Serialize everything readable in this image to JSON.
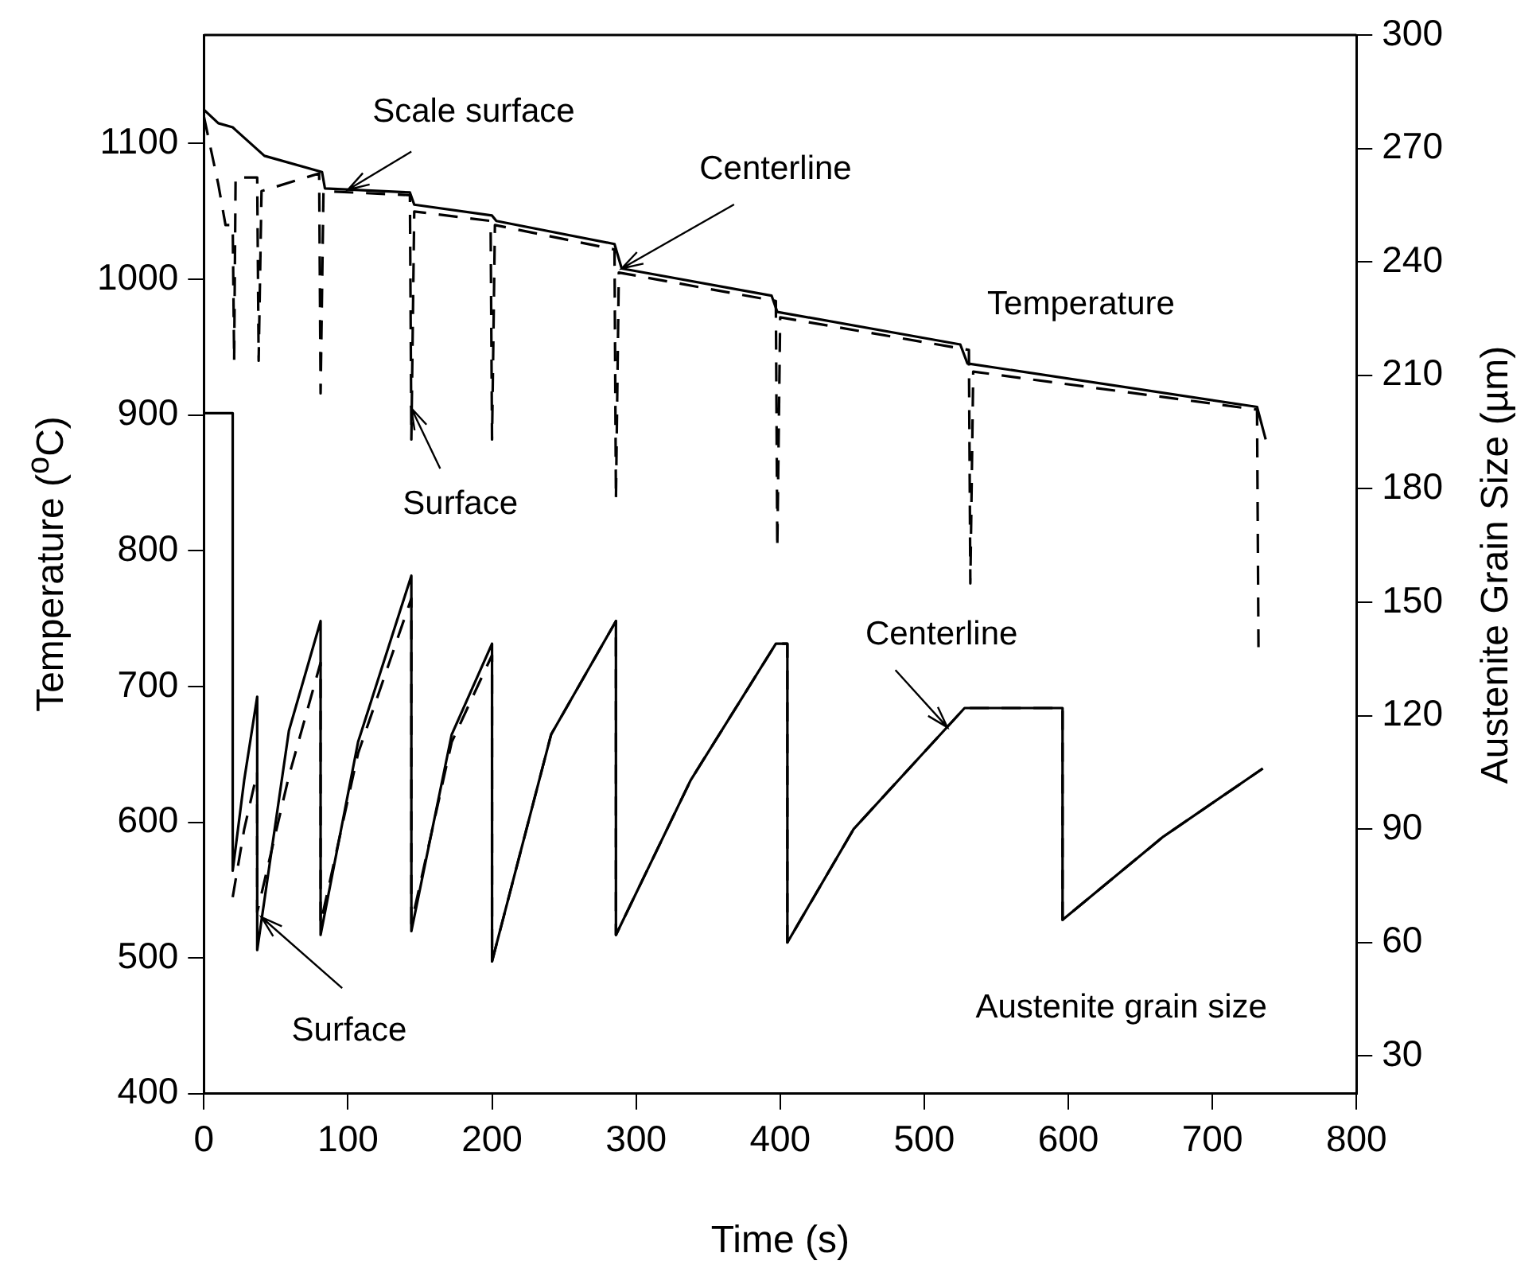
{
  "chart_data": {
    "type": "line",
    "xlabel": "Time (s)",
    "ylabel": "Temperature ($^{o}$C)",
    "y2label": "Austenite Grain Size (µm)",
    "xlim": [
      0,
      800
    ],
    "xticks": [
      0,
      100,
      200,
      300,
      400,
      500,
      600,
      700,
      800
    ],
    "ylim": [
      400,
      1180
    ],
    "yticks": [
      400,
      500,
      600,
      700,
      800,
      900,
      1000,
      1100
    ],
    "y2lim": [
      20,
      300
    ],
    "y2ticks": [
      30,
      60,
      90,
      120,
      150,
      180,
      210,
      240,
      270,
      300
    ],
    "series": [
      {
        "color": "#000000",
        "line_style": "solid",
        "x": [
          0,
          10,
          20,
          22,
          42,
          82,
          84,
          143,
          146,
          200,
          203,
          285,
          290,
          394,
          398,
          525,
          530,
          731,
          737
        ],
        "values": [
          1125,
          1115,
          1112,
          1110,
          1091,
          1079,
          1067,
          1064,
          1055,
          1047,
          1043,
          1026,
          1008,
          988,
          976,
          952,
          938,
          906,
          882
        ]
      },
      {
        "color": "#000000",
        "line_style": "dashed",
        "x": [
          0,
          10,
          15,
          20,
          21,
          22,
          30,
          37,
          38,
          40,
          80,
          81,
          83,
          143,
          144,
          146,
          199,
          200,
          202,
          285,
          286,
          288,
          397,
          398,
          400,
          531,
          532,
          534,
          731,
          732
        ],
        "values": [
          1120,
          1070,
          1040,
          1040,
          940,
          1075,
          1075,
          1075,
          940,
          1065,
          1078,
          916,
          1065,
          1062,
          882,
          1050,
          1043,
          882,
          1040,
          1022,
          838,
          1005,
          984,
          802,
          972,
          948,
          776,
          932,
          904,
          729
        ]
      },
      {
        "color": "#000000",
        "line_style": "solid",
        "axis": "y2",
        "x": [
          0,
          20,
          20,
          28,
          37,
          37,
          59,
          81,
          81,
          107,
          144,
          144,
          172,
          200,
          200,
          241,
          286,
          286,
          338,
          397,
          405,
          405,
          451,
          516,
          528,
          596,
          596,
          666,
          735
        ],
        "values": [
          200,
          200,
          79,
          103,
          125,
          58,
          116,
          145,
          62,
          113,
          157,
          63,
          115,
          139,
          55,
          115,
          145,
          62,
          103,
          139,
          139,
          60,
          90,
          117,
          122,
          122,
          66,
          88,
          106
        ]
      },
      {
        "color": "#000000",
        "line_style": "dashed",
        "axis": "y2",
        "x": [
          20,
          28,
          37,
          37,
          59,
          81,
          81,
          107,
          144,
          144,
          172,
          200,
          200,
          241,
          286,
          286,
          338,
          397,
          405,
          405,
          451,
          516,
          528,
          596,
          596,
          666,
          735
        ],
        "values": [
          72,
          90,
          105,
          68,
          104,
          134,
          65,
          110,
          151,
          65,
          113,
          136,
          55,
          115,
          145,
          62,
          103,
          139,
          139,
          60,
          90,
          117,
          122,
          122,
          66,
          88,
          106
        ]
      }
    ],
    "annotations": [
      {
        "text": "Scale surface",
        "x": 100,
        "y": 1066
      },
      {
        "text": "Centerline",
        "x": 290,
        "y": 1008
      },
      "Temperature",
      {
        "text": "Surface",
        "x": 144,
        "y": 905
      },
      {
        "text": "Centerline",
        "x": 516,
        "y": 670
      },
      {
        "text": "Surface",
        "x": 40,
        "y": 530
      },
      "Austenite grain size"
    ]
  }
}
